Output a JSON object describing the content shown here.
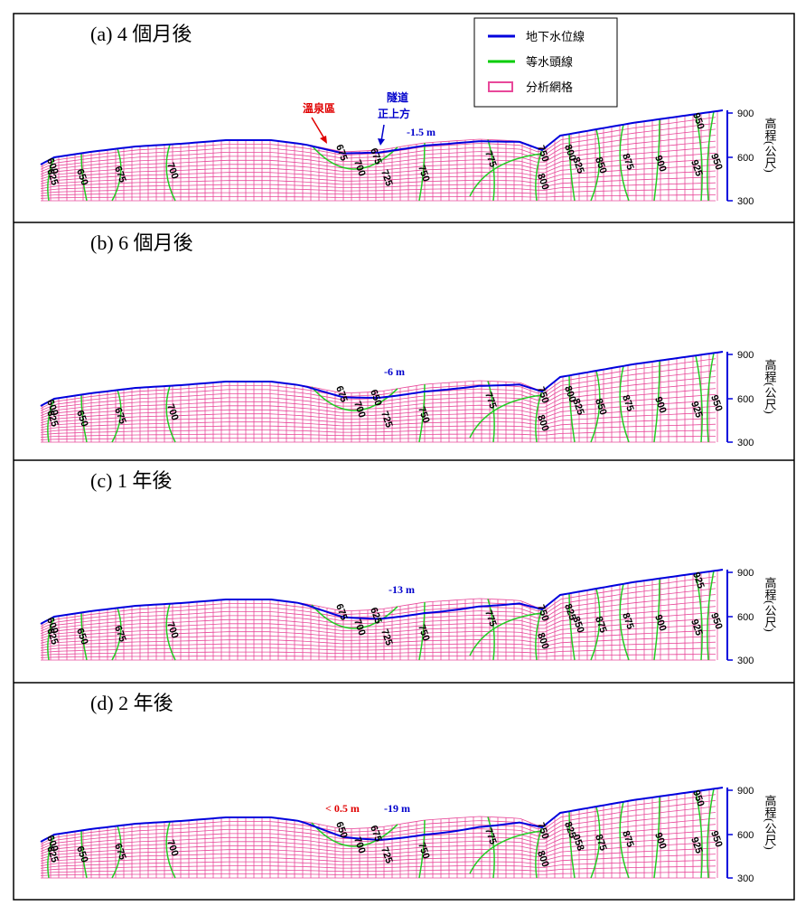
{
  "legend": {
    "items": [
      "地下水位線",
      "等水頭線",
      "分析網格"
    ]
  },
  "axis": {
    "label": "高程(公尺)",
    "ticks": [
      "900",
      "600",
      "300"
    ]
  },
  "panels": [
    {
      "title": "(a) 4 個月後",
      "annotations": [
        "溫泉區",
        "隧道",
        "正上方",
        "-1.5 m"
      ],
      "contour_labels": [
        "600",
        "625",
        "650",
        "675",
        "700",
        "675",
        "675",
        "700",
        "725",
        "750",
        "775",
        "750",
        "800",
        "800",
        "825",
        "850",
        "875",
        "900",
        "925",
        "950",
        "950"
      ]
    },
    {
      "title": "(b) 6 個月後",
      "annotations": [
        "-6 m"
      ],
      "contour_labels": [
        "600",
        "625",
        "650",
        "675",
        "700",
        "675",
        "650",
        "700",
        "725",
        "750",
        "775",
        "750",
        "800",
        "800",
        "825",
        "850",
        "875",
        "900",
        "925",
        "950"
      ]
    },
    {
      "title": "(c) 1 年後",
      "annotations": [
        "-13 m"
      ],
      "contour_labels": [
        "600",
        "625",
        "650",
        "675",
        "700",
        "675",
        "625",
        "700",
        "725",
        "750",
        "775",
        "750",
        "800",
        "825",
        "850",
        "875",
        "875",
        "900",
        "925",
        "950",
        "925"
      ]
    },
    {
      "title": "(d) 2 年後",
      "annotations": [
        "< 0.5 m",
        "-19 m"
      ],
      "contour_labels": [
        "600",
        "625",
        "650",
        "675",
        "700",
        "650",
        "675",
        "700",
        "725",
        "750",
        "775",
        "750",
        "800",
        "825",
        "058",
        "875",
        "875",
        "900",
        "925",
        "950",
        "950"
      ]
    }
  ]
}
